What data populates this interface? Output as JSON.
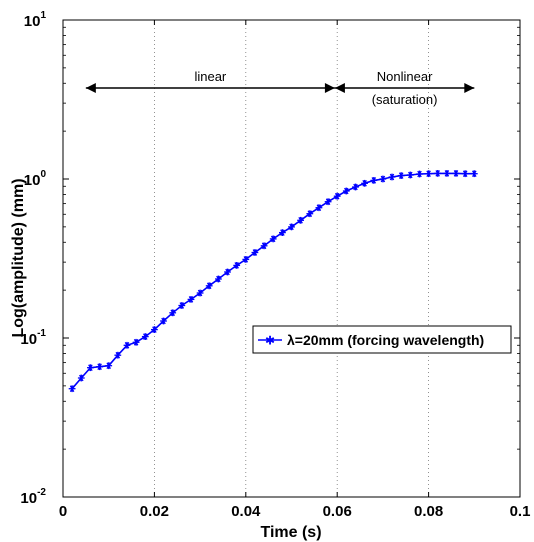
{
  "chart_data": {
    "type": "line",
    "title": "",
    "xlabel": "Time (s)",
    "ylabel": "Log(amplitude) (mm)",
    "xlim": [
      0,
      0.1
    ],
    "ylim": [
      0.01,
      10
    ],
    "yscale": "log",
    "x_ticks": [
      "0",
      "0.02",
      "0.04",
      "0.06",
      "0.08",
      "0.1"
    ],
    "y_ticks": [
      {
        "base": "10",
        "exp": "-2"
      },
      {
        "base": "10",
        "exp": "-1"
      },
      {
        "base": "10",
        "exp": "0"
      },
      {
        "base": "10",
        "exp": "1"
      }
    ],
    "grid": "vertical dotted at x ticks",
    "legend_position": "center-right",
    "series": [
      {
        "name": "λ=20mm (forcing wavelength)",
        "color": "#0000ff",
        "marker": "star",
        "x": [
          0.002,
          0.004,
          0.006,
          0.008,
          0.01,
          0.012,
          0.014,
          0.016,
          0.018,
          0.02,
          0.022,
          0.024,
          0.026,
          0.028,
          0.03,
          0.032,
          0.034,
          0.036,
          0.038,
          0.04,
          0.042,
          0.044,
          0.046,
          0.048,
          0.05,
          0.052,
          0.054,
          0.056,
          0.058,
          0.06,
          0.062,
          0.064,
          0.066,
          0.068,
          0.07,
          0.072,
          0.074,
          0.076,
          0.078,
          0.08,
          0.082,
          0.084,
          0.086,
          0.088,
          0.09
        ],
        "y": [
          0.048,
          0.056,
          0.065,
          0.066,
          0.067,
          0.078,
          0.09,
          0.094,
          0.102,
          0.113,
          0.128,
          0.144,
          0.16,
          0.175,
          0.192,
          0.213,
          0.235,
          0.26,
          0.286,
          0.312,
          0.345,
          0.38,
          0.42,
          0.46,
          0.5,
          0.55,
          0.605,
          0.66,
          0.72,
          0.78,
          0.84,
          0.89,
          0.94,
          0.98,
          1.0,
          1.03,
          1.05,
          1.06,
          1.075,
          1.08,
          1.085,
          1.085,
          1.085,
          1.08,
          1.08
        ]
      }
    ],
    "annotations": [
      {
        "text": "linear",
        "x_start": 0.005,
        "x_end": 0.0595
      },
      {
        "text": "Nonlinear",
        "text2": "(saturation)",
        "x_start": 0.0595,
        "x_end": 0.09
      }
    ]
  }
}
